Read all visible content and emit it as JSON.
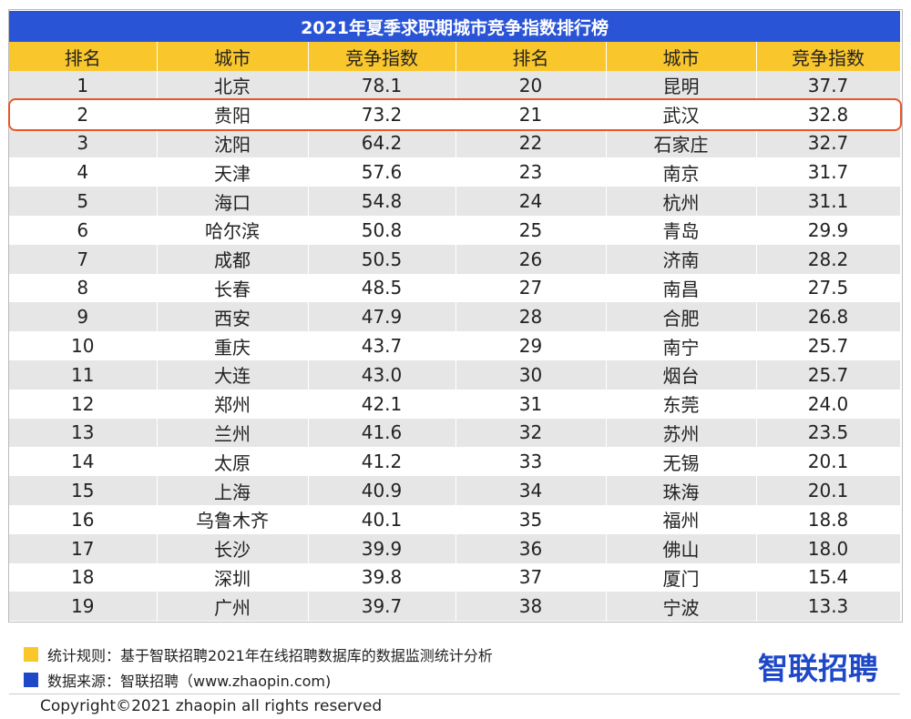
{
  "title": "2021年夏季求职期城市竞争指数排行榜",
  "header": [
    "排名",
    "城市",
    "竞争指数",
    "排名",
    "城市",
    "竞争指数"
  ],
  "rows": [
    [
      "1",
      "北京",
      "78.1",
      "20",
      "昆明",
      "37.7"
    ],
    [
      "2",
      "贵阳",
      "73.2",
      "21",
      "武汉",
      "32.8"
    ],
    [
      "3",
      "沈阳",
      "64.2",
      "22",
      "石家庄",
      "32.7"
    ],
    [
      "4",
      "天津",
      "57.6",
      "23",
      "南京",
      "31.7"
    ],
    [
      "5",
      "海口",
      "54.8",
      "24",
      "杭州",
      "31.1"
    ],
    [
      "6",
      "哈尔滨",
      "50.8",
      "25",
      "青岛",
      "29.9"
    ],
    [
      "7",
      "成都",
      "50.5",
      "26",
      "济南",
      "28.2"
    ],
    [
      "8",
      "长春",
      "48.5",
      "27",
      "南昌",
      "27.5"
    ],
    [
      "9",
      "西安",
      "47.9",
      "28",
      "合肥",
      "26.8"
    ],
    [
      "10",
      "重庆",
      "43.7",
      "29",
      "南宁",
      "25.7"
    ],
    [
      "11",
      "大连",
      "43.0",
      "30",
      "烟台",
      "25.7"
    ],
    [
      "12",
      "郑州",
      "42.1",
      "31",
      "东莞",
      "24.0"
    ],
    [
      "13",
      "兰州",
      "41.6",
      "32",
      "苏州",
      "23.5"
    ],
    [
      "14",
      "太原",
      "41.2",
      "33",
      "无锡",
      "20.1"
    ],
    [
      "15",
      "上海",
      "40.9",
      "34",
      "珠海",
      "20.1"
    ],
    [
      "16",
      "乌鲁木齐",
      "40.1",
      "35",
      "福州",
      "18.8"
    ],
    [
      "17",
      "长沙",
      "39.9",
      "36",
      "佛山",
      "18.0"
    ],
    [
      "18",
      "深圳",
      "39.8",
      "37",
      "厦门",
      "15.4"
    ],
    [
      "19",
      "广州",
      "39.7",
      "38",
      "宁波",
      "13.3"
    ]
  ],
  "notes": [
    "统计规则：基于智联招聘2021年在线招聘数据库的数据监测统计分析",
    "数据来源：智联招聘（www.zhaopin.com)"
  ],
  "logo": "智联招聘",
  "copyright": "Copyright©2021 zhaopin all rights reserved"
}
